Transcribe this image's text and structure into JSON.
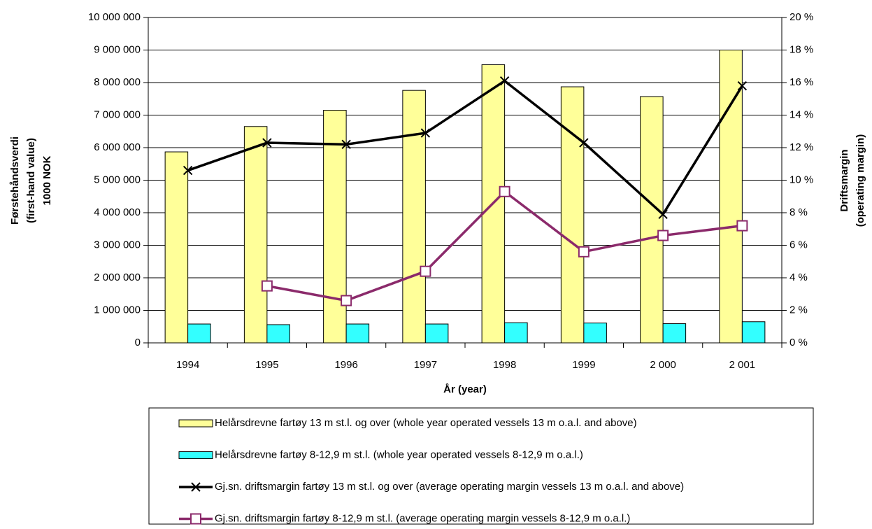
{
  "chart_data": {
    "type": "bar",
    "y_label": [
      "Førstehåndsverdi",
      "(first-hand value)",
      "1000 NOK"
    ],
    "y2_label": [
      "Driftsmargin",
      "(operating margin)"
    ],
    "x_label": "År (year)",
    "categories": [
      "1994",
      "1995",
      "1996",
      "1997",
      "1998",
      "1999",
      "2 000",
      "2 001"
    ],
    "ylim": [
      0,
      10000000
    ],
    "yticks": [
      0,
      {
        "value": 1000000,
        "label": "1 000 000"
      },
      {
        "value": 2000000,
        "label": "2 000 000"
      },
      {
        "value": 3000000,
        "label": "3 000 000"
      },
      {
        "value": 4000000,
        "label": "4 000 000"
      },
      {
        "value": 5000000,
        "label": "5 000 000"
      },
      {
        "value": 6000000,
        "label": "6 000 000"
      },
      {
        "value": 7000000,
        "label": "7 000 000"
      },
      {
        "value": 8000000,
        "label": "8 000 000"
      },
      {
        "value": 9000000,
        "label": "9 000 000"
      },
      {
        "value": 10000000,
        "label": "10 000 000"
      }
    ],
    "y2lim": [
      0,
      20
    ],
    "y2ticks": [
      {
        "value": 0,
        "label": "0 %"
      },
      {
        "value": 2,
        "label": "2 %"
      },
      {
        "value": 4,
        "label": "4 %"
      },
      {
        "value": 6,
        "label": "6 %"
      },
      {
        "value": 8,
        "label": "8 %"
      },
      {
        "value": 10,
        "label": "10 %"
      },
      {
        "value": 12,
        "label": "12 %"
      },
      {
        "value": 14,
        "label": "14 %"
      },
      {
        "value": 16,
        "label": "16 %"
      },
      {
        "value": 18,
        "label": "18 %"
      },
      {
        "value": 20,
        "label": "20 %"
      }
    ],
    "grid": true,
    "legend": "bottom",
    "series": [
      {
        "name": "Helårsdrevne fartøy 13 m st.l. og over (whole year operated vessels 13 m o.a.l. and above)",
        "type": "bar",
        "color": "#FFFF99",
        "values": [
          5870000,
          6650000,
          7150000,
          7760000,
          8550000,
          7870000,
          7570000,
          9000000
        ]
      },
      {
        "name": "Helårsdrevne fartøy 8-12,9 m st.l. (whole year operated vessels 8-12,9 m o.a.l.)",
        "type": "bar",
        "color": "#33FFFF",
        "values": [
          580000,
          560000,
          580000,
          580000,
          620000,
          610000,
          590000,
          650000
        ]
      },
      {
        "name": "Gj.sn. driftsmargin fartøy 13 m st.l. og over (average operating margin vessels 13 m o.a.l. and above)",
        "type": "line",
        "axis": "y2",
        "marker": "x",
        "color": "#000000",
        "values": [
          10.6,
          12.3,
          12.2,
          12.9,
          16.1,
          12.3,
          7.9,
          15.8
        ]
      },
      {
        "name": "Gj.sn. driftsmargin fartøy 8-12,9 m st.l. (average operating margin vessels 8-12,9 m o.a.l.)",
        "type": "line",
        "axis": "y2",
        "marker": "square",
        "color": "#8B2A6B",
        "values": [
          null,
          3.5,
          2.6,
          4.4,
          9.3,
          5.6,
          6.6,
          7.2
        ]
      }
    ]
  }
}
